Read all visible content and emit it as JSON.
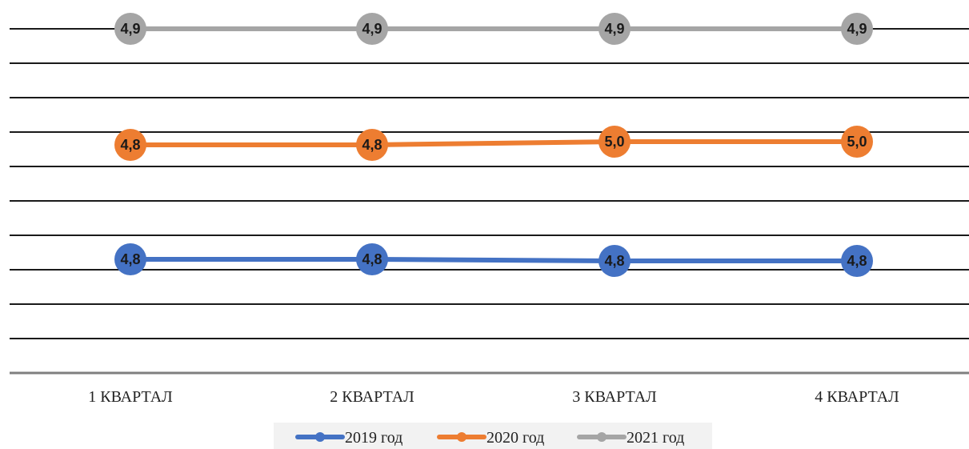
{
  "chart_data": {
    "type": "line",
    "categories": [
      "1 КВАРТАЛ",
      "2 КВАРТАЛ",
      "3 КВАРТАЛ",
      "4 КВАРТАЛ"
    ],
    "series": [
      {
        "name": "2019 год",
        "color": "#4472c4",
        "values": [
          4.8,
          4.8,
          4.8,
          4.8
        ]
      },
      {
        "name": "2020 год",
        "color": "#ed7d31",
        "values": [
          4.8,
          4.8,
          5.0,
          5.0
        ]
      },
      {
        "name": "2021 год",
        "color": "#a5a5a5",
        "values": [
          4.9,
          4.9,
          4.9,
          4.9
        ]
      }
    ],
    "data_labels": [
      [
        "4,8",
        "4,8",
        "4,8",
        "4,8"
      ],
      [
        "4,8",
        "4,8",
        "5,0",
        "5,0"
      ],
      [
        "4,9",
        "4,9",
        "4,9",
        "4,9"
      ]
    ],
    "title": "",
    "xlabel": "",
    "ylabel": "",
    "grid": true,
    "legend": "bottom"
  }
}
